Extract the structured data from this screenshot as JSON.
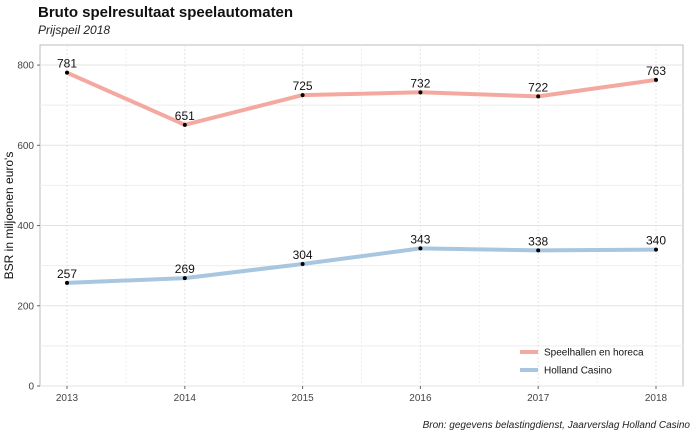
{
  "chart_data": {
    "type": "line",
    "title": "Bruto spelresultaat speelautomaten",
    "subtitle": "Prijspeil 2018",
    "caption": "Bron: gegevens belastingdienst, Jaarverslag Holland Casino",
    "xlabel": "",
    "ylabel": "BSR in miljoenen euro's",
    "x": [
      2013,
      2014,
      2015,
      2016,
      2017,
      2018
    ],
    "ylim": [
      0,
      850
    ],
    "yticks": [
      0,
      200,
      400,
      600,
      800
    ],
    "grid": true,
    "legend_position": "bottom-right",
    "series": [
      {
        "name": "Speelhallen en horeca",
        "color": "#f4a9a0",
        "values": [
          781,
          651,
          725,
          732,
          722,
          763
        ]
      },
      {
        "name": "Holland Casino",
        "color": "#a9c6e0",
        "values": [
          257,
          269,
          304,
          343,
          338,
          340
        ]
      }
    ]
  }
}
